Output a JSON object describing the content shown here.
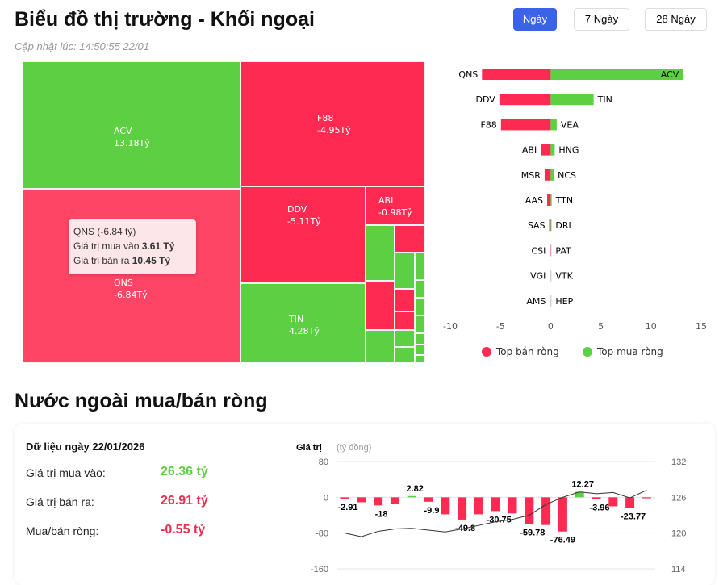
{
  "header": {
    "title": "Biểu đồ thị trường - Khối ngoại",
    "updated": "Cập nhật lúc: 14:50:55 22/01",
    "ranges": [
      "Ngày",
      "7 Ngày",
      "28 Ngày"
    ],
    "active_range": "Ngày"
  },
  "colors": {
    "buy": "#5ccf42",
    "sell": "#ff2a52",
    "accent": "#3b63e8"
  },
  "treemap": {
    "cells": [
      {
        "name": "ACV",
        "value": "13.18Tỷ"
      },
      {
        "name": "QNS",
        "value": "-6.84Tỷ"
      },
      {
        "name": "F88",
        "value": "-4.95Tỷ"
      },
      {
        "name": "DDV",
        "value": "-5.11Tỷ"
      },
      {
        "name": "TIN",
        "value": "4.28Tỷ"
      },
      {
        "name": "ABI",
        "value": "-0.98Tỷ"
      }
    ],
    "tooltip": {
      "title": "QNS (-6.84 tỷ)",
      "buy_label": "Giá trị mua vào",
      "buy_value": "3.61 Tỷ",
      "sell_label": "Giá trị bán ra",
      "sell_value": "10.45 Tỷ"
    }
  },
  "chart_data": [
    {
      "type": "bar",
      "orientation": "horizontal",
      "xlim": [
        -10,
        15
      ],
      "xticks": [
        "-10",
        "-5",
        "0",
        "5",
        "10",
        "15"
      ],
      "legend": [
        "Top bán ròng",
        "Top mua ròng"
      ],
      "legend_placement": "bottom",
      "sell": {
        "categories": [
          "QNS",
          "DDV",
          "F88",
          "ABI",
          "MSR",
          "AAS",
          "SAS",
          "CSI",
          "VGI",
          "AMS"
        ],
        "values": [
          -6.84,
          -5.11,
          -4.95,
          -0.98,
          -0.6,
          -0.35,
          -0.15,
          -0.05,
          0,
          0
        ]
      },
      "buy": {
        "categories": [
          "ACV",
          "TIN",
          "VEA",
          "HNG",
          "NCS",
          "TTN",
          "DRI",
          "PAT",
          "VTK",
          "HEP"
        ],
        "values": [
          13.18,
          4.28,
          0.6,
          0.4,
          0.3,
          0.1,
          0.02,
          0,
          0,
          0
        ]
      }
    },
    {
      "type": "bar+line",
      "ylabel": "Giá trị",
      "yunit": "(tỷ đồng)",
      "ylim": [
        -160,
        80
      ],
      "yticks": [
        "80",
        "0",
        "-80",
        "-160"
      ],
      "y2lim": [
        114,
        132
      ],
      "y2ticks": [
        "132",
        "126",
        "120",
        "114"
      ],
      "bars": [
        -2.91,
        -11,
        -18,
        -14,
        2.82,
        -9.9,
        -38,
        -49.8,
        -38,
        -30.75,
        -36,
        -59.78,
        -62,
        -76.49,
        12.27,
        -3.96,
        -20,
        -23.77,
        -0.55
      ],
      "bar_labels": [
        "-2.91",
        "",
        "-18",
        "",
        "2.82",
        "-9.9",
        "",
        "-49.8",
        "",
        "-30.75",
        "",
        "-59.78",
        "",
        "-76.49",
        "12.27",
        "-3.96",
        "",
        "-23.77",
        ""
      ],
      "line": [
        120.0,
        119.4,
        120.3,
        120.7,
        120.8,
        120.5,
        120.2,
        120.7,
        121.3,
        121.9,
        122.3,
        123.0,
        124.8,
        126.0,
        126.9,
        126.6,
        126.8,
        125.9,
        127.2
      ]
    }
  ],
  "summary": {
    "date": "Dữ liệu ngày 22/01/2026",
    "rows": [
      {
        "label": "Giá trị mua vào:",
        "value": "26.36 tỷ"
      },
      {
        "label": "Giá trị bán ra:",
        "value": "26.91 tỷ"
      },
      {
        "label": "Mua/bán ròng:",
        "value": "-0.55 tỷ"
      }
    ]
  },
  "section2": {
    "title": "Nước ngoài mua/bán ròng"
  }
}
